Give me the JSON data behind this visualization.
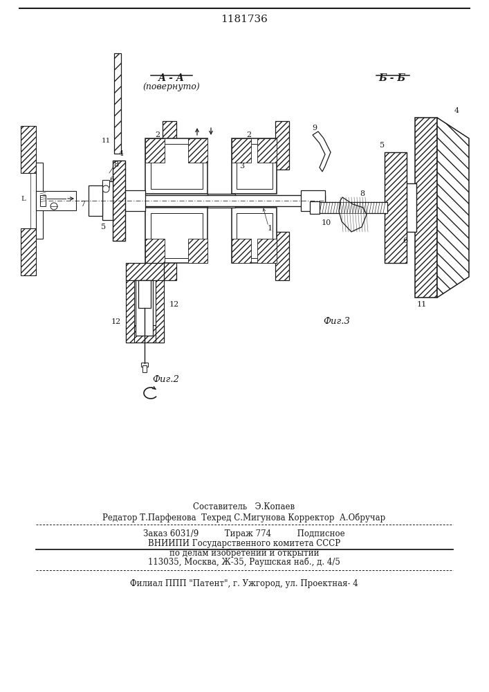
{
  "patent_number": "1181736",
  "bg": "#ffffff",
  "lc": "#1a1a1a",
  "section_AA": "А - А",
  "section_AA_sub": "(повернуто)",
  "section_BB": "Б - Б",
  "fig2": "Фиг.2",
  "fig3": "Фиг.3",
  "footer1": "Составитель   Э.Копаев",
  "footer2": "Редатор Т.Парфенова  Техред С.Мигунова Корректор  А.Обручар",
  "footer3": "Заказ 6031/9          Тираж 774          Подписное",
  "footer4": "ВНИИПИ Государственного комитета СССР",
  "footer5": "по делам изобретений и открытий",
  "footer6": "113035, Москва, Ж-35, Раушская наб., д. 4/5",
  "footer7": "Филиал ППП \"Патент\", г. Ужгород, ул. Проектная- 4"
}
